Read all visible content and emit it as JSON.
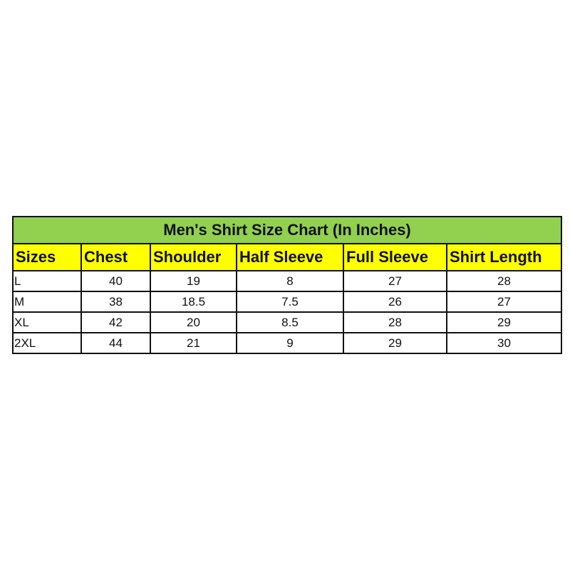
{
  "title": "Men's Shirt Size Chart (In Inches)",
  "colors": {
    "title_bg": "#92d050",
    "header_bg": "#ffff00"
  },
  "headers": [
    "Sizes",
    "Chest",
    "Shoulder",
    "Half Sleeve",
    "Full Sleeve",
    "Shirt Length"
  ],
  "rows": [
    [
      "L",
      "40",
      "19",
      "8",
      "27",
      "28"
    ],
    [
      "M",
      "38",
      "18.5",
      "7.5",
      "26",
      "27"
    ],
    [
      "XL",
      "42",
      "20",
      "8.5",
      "28",
      "29"
    ],
    [
      "2XL",
      "44",
      "21",
      "9",
      "29",
      "30"
    ]
  ]
}
